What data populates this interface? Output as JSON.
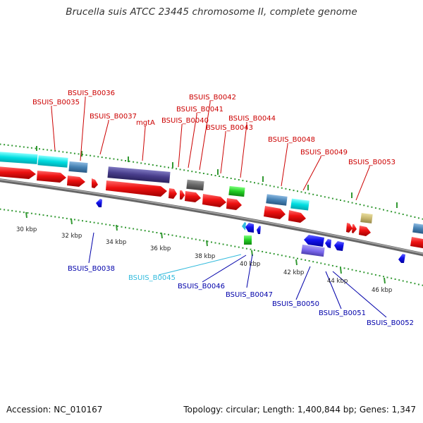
{
  "title": "Brucella suis ATCC 23445 chromosome II, complete genome",
  "footer": {
    "accession": "Accession: NC_010167",
    "summary": "Topology: circular; Length: 1,400,844 bp; Genes: 1,347"
  },
  "colors": {
    "forward_cds": "#ee1111",
    "reverse_cds": "#1111ee",
    "top_label": "#cc0000",
    "bottom_label": "#0000aa",
    "highlight_label": "#33bbdd",
    "ticks": "#339933",
    "backbone": "#888888"
  },
  "scale_labels": [
    "30 kbp",
    "32 kbp",
    "34 kbp",
    "36 kbp",
    "38 kbp",
    "40 kbp",
    "42 kbp",
    "44 kbp",
    "46 kbp"
  ],
  "top_genes": [
    "BSUIS_B0036",
    "BSUIS_B0035",
    "BSUIS_B0037",
    "mgtA",
    "BSUIS_B0040",
    "BSUIS_B0041",
    "BSUIS_B0042",
    "BSUIS_B0043",
    "BSUIS_B0044",
    "BSUIS_B0048",
    "BSUIS_B0049",
    "BSUIS_B0053"
  ],
  "bottom_genes": [
    "BSUIS_B0038",
    "BSUIS_B0045",
    "BSUIS_B0046",
    "BSUIS_B0047",
    "BSUIS_B0050",
    "BSUIS_B0051",
    "BSUIS_B0052"
  ]
}
